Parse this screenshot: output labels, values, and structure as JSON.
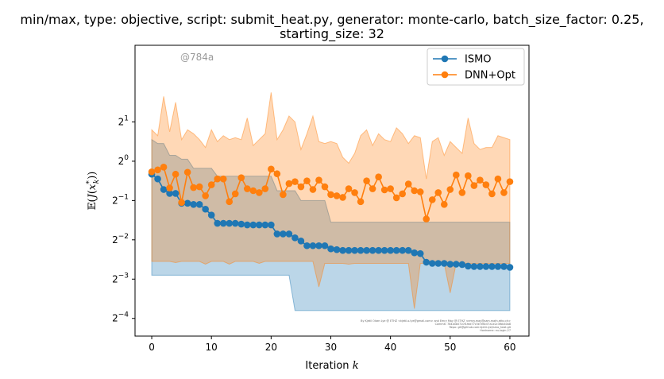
{
  "chart_data": {
    "type": "line",
    "title_lines": [
      "min/max, type: objective, script: submit_heat.py, generator: monte-carlo, batch_size_factor: 0.25,",
      "starting_size: 32"
    ],
    "xlabel": "Iteration $k$",
    "ylabel": "$\\mathbb{E}(J(x_k^*))$",
    "xlim": [
      -2.8,
      63.2
    ],
    "ylim_log2": [
      -4.45,
      2.95
    ],
    "y_scale": "log2",
    "x_ticks": [
      0,
      10,
      20,
      30,
      40,
      50,
      60
    ],
    "y_ticks_exp": [
      1,
      0,
      -1,
      -2,
      -3,
      -4
    ],
    "y_tick_labels": [
      "2^1",
      "2^0",
      "2^-1",
      "2^-2",
      "2^-3",
      "2^-4"
    ],
    "watermark": "@784a",
    "footnote_lines": [
      "By Kjetil Olsen Lye @ ETHZ <kjetil.o.lye@gmail.com> and Emry May @ ETHZ <emry.may@sam.math.ethz.ch>",
      "Commit: 784a4b0710f1fdd77c5e7e6c07a1e2c3fbb40a8",
      "Repo: git@github.com:kjetil-lye/ismo_heat.git",
      "Hostname: eu-login-27"
    ],
    "legend": {
      "position": "top-right"
    },
    "series": [
      {
        "name": "ISMO",
        "color": "#1f77b4",
        "x": [
          0,
          1,
          2,
          3,
          4,
          5,
          6,
          7,
          8,
          9,
          10,
          11,
          12,
          13,
          14,
          15,
          16,
          17,
          18,
          19,
          20,
          21,
          22,
          23,
          24,
          25,
          26,
          27,
          28,
          29,
          30,
          31,
          32,
          33,
          34,
          35,
          36,
          37,
          38,
          39,
          40,
          41,
          42,
          43,
          44,
          45,
          46,
          47,
          48,
          49,
          50,
          51,
          52,
          53,
          54,
          55,
          56,
          57,
          58,
          59,
          60
        ],
        "y_log2": [
          -0.33,
          -0.45,
          -0.72,
          -0.82,
          -0.82,
          -1.07,
          -1.07,
          -1.1,
          -1.1,
          -1.22,
          -1.37,
          -1.58,
          -1.58,
          -1.58,
          -1.58,
          -1.6,
          -1.62,
          -1.62,
          -1.62,
          -1.62,
          -1.62,
          -1.85,
          -1.85,
          -1.85,
          -1.95,
          -2.03,
          -2.15,
          -2.15,
          -2.15,
          -2.15,
          -2.23,
          -2.25,
          -2.27,
          -2.27,
          -2.27,
          -2.27,
          -2.27,
          -2.27,
          -2.27,
          -2.27,
          -2.27,
          -2.27,
          -2.27,
          -2.27,
          -2.33,
          -2.35,
          -2.57,
          -2.6,
          -2.6,
          -2.6,
          -2.62,
          -2.62,
          -2.63,
          -2.67,
          -2.68,
          -2.68,
          -2.68,
          -2.68,
          -2.68,
          -2.68,
          -2.7
        ],
        "band_upper_log2": [
          0.55,
          0.45,
          0.45,
          0.15,
          0.15,
          0.05,
          0.05,
          -0.18,
          -0.18,
          -0.18,
          -0.18,
          -0.38,
          -0.38,
          -0.38,
          -0.38,
          -0.38,
          -0.38,
          -0.38,
          -0.38,
          -0.38,
          -0.38,
          -0.75,
          -0.75,
          -0.75,
          -0.75,
          -1.0,
          -1.0,
          -1.0,
          -1.0,
          -1.0,
          -1.55,
          -1.55,
          -1.55,
          -1.55,
          -1.55,
          -1.55,
          -1.55,
          -1.55,
          -1.55,
          -1.55,
          -1.55,
          -1.55,
          -1.55,
          -1.55,
          -1.55,
          -1.55,
          -1.55,
          -1.55,
          -1.55,
          -1.55,
          -1.55,
          -1.55,
          -1.55,
          -1.55,
          -1.55,
          -1.55,
          -1.55,
          -1.55,
          -1.55,
          -1.55,
          -1.55
        ],
        "band_lower_log2": [
          -2.9,
          -2.9,
          -2.9,
          -2.9,
          -2.9,
          -2.9,
          -2.9,
          -2.9,
          -2.9,
          -2.9,
          -2.9,
          -2.9,
          -2.9,
          -2.9,
          -2.9,
          -2.9,
          -2.9,
          -2.9,
          -2.9,
          -2.9,
          -2.9,
          -2.9,
          -2.9,
          -2.9,
          -3.8,
          -3.8,
          -3.8,
          -3.8,
          -3.8,
          -3.8,
          -3.8,
          -3.8,
          -3.8,
          -3.8,
          -3.8,
          -3.8,
          -3.8,
          -3.8,
          -3.8,
          -3.8,
          -3.8,
          -3.8,
          -3.8,
          -3.8,
          -3.8,
          -3.8,
          -3.8,
          -3.8,
          -3.8,
          -3.8,
          -3.8,
          -3.8,
          -3.8,
          -3.8,
          -3.8,
          -3.8,
          -3.8,
          -3.8,
          -3.8,
          -3.8,
          -3.8
        ]
      },
      {
        "name": "DNN+Opt",
        "color": "#ff7f0e",
        "x": [
          0,
          1,
          2,
          3,
          4,
          5,
          6,
          7,
          8,
          9,
          10,
          11,
          12,
          13,
          14,
          15,
          16,
          17,
          18,
          19,
          20,
          21,
          22,
          23,
          24,
          25,
          26,
          27,
          28,
          29,
          30,
          31,
          32,
          33,
          34,
          35,
          36,
          37,
          38,
          39,
          40,
          41,
          42,
          43,
          44,
          45,
          46,
          47,
          48,
          49,
          50,
          51,
          52,
          53,
          54,
          55,
          56,
          57,
          58,
          59,
          60
        ],
        "y_log2": [
          -0.27,
          -0.22,
          -0.15,
          -0.68,
          -0.33,
          -1.05,
          -0.28,
          -0.67,
          -0.65,
          -0.88,
          -0.6,
          -0.45,
          -0.45,
          -1.03,
          -0.83,
          -0.42,
          -0.7,
          -0.75,
          -0.8,
          -0.7,
          -0.2,
          -0.32,
          -0.85,
          -0.57,
          -0.52,
          -0.65,
          -0.5,
          -0.72,
          -0.48,
          -0.65,
          -0.85,
          -0.88,
          -0.92,
          -0.7,
          -0.8,
          -1.03,
          -0.5,
          -0.7,
          -0.4,
          -0.73,
          -0.7,
          -0.93,
          -0.83,
          -0.58,
          -0.75,
          -0.78,
          -1.47,
          -0.98,
          -0.8,
          -1.1,
          -0.72,
          -0.35,
          -0.8,
          -0.37,
          -0.62,
          -0.48,
          -0.6,
          -0.83,
          -0.45,
          -0.8,
          -0.52
        ],
        "band_upper_log2": [
          0.8,
          0.65,
          1.65,
          0.75,
          1.5,
          0.55,
          0.8,
          0.7,
          0.55,
          0.35,
          0.8,
          0.5,
          0.65,
          0.55,
          0.6,
          0.55,
          1.1,
          0.4,
          0.55,
          0.7,
          1.75,
          0.55,
          0.8,
          1.15,
          1.0,
          0.3,
          0.7,
          1.15,
          0.5,
          0.45,
          0.5,
          0.45,
          0.1,
          -0.05,
          0.2,
          0.65,
          0.8,
          0.4,
          0.7,
          0.55,
          0.5,
          0.85,
          0.7,
          0.45,
          0.65,
          0.6,
          -0.45,
          0.5,
          0.6,
          0.15,
          0.5,
          0.35,
          0.2,
          1.1,
          0.45,
          0.3,
          0.35,
          0.35,
          0.65,
          0.6,
          0.55
        ],
        "band_lower_log2": [
          -2.55,
          -2.55,
          -2.55,
          -2.55,
          -2.58,
          -2.55,
          -2.55,
          -2.55,
          -2.55,
          -2.62,
          -2.55,
          -2.55,
          -2.55,
          -2.62,
          -2.55,
          -2.55,
          -2.55,
          -2.55,
          -2.6,
          -2.55,
          -2.55,
          -2.55,
          -2.55,
          -2.55,
          -2.55,
          -2.55,
          -2.55,
          -2.55,
          -3.2,
          -2.6,
          -2.6,
          -2.6,
          -2.6,
          -2.62,
          -2.6,
          -2.6,
          -2.6,
          -2.6,
          -2.6,
          -2.6,
          -2.6,
          -2.6,
          -2.6,
          -2.6,
          -3.75,
          -2.6,
          -2.6,
          -2.6,
          -2.6,
          -2.6,
          -3.35,
          -2.6,
          -2.6,
          -2.6,
          -2.6,
          -2.6,
          -2.6,
          -2.6,
          -2.6,
          -2.6,
          -2.6
        ]
      }
    ]
  }
}
